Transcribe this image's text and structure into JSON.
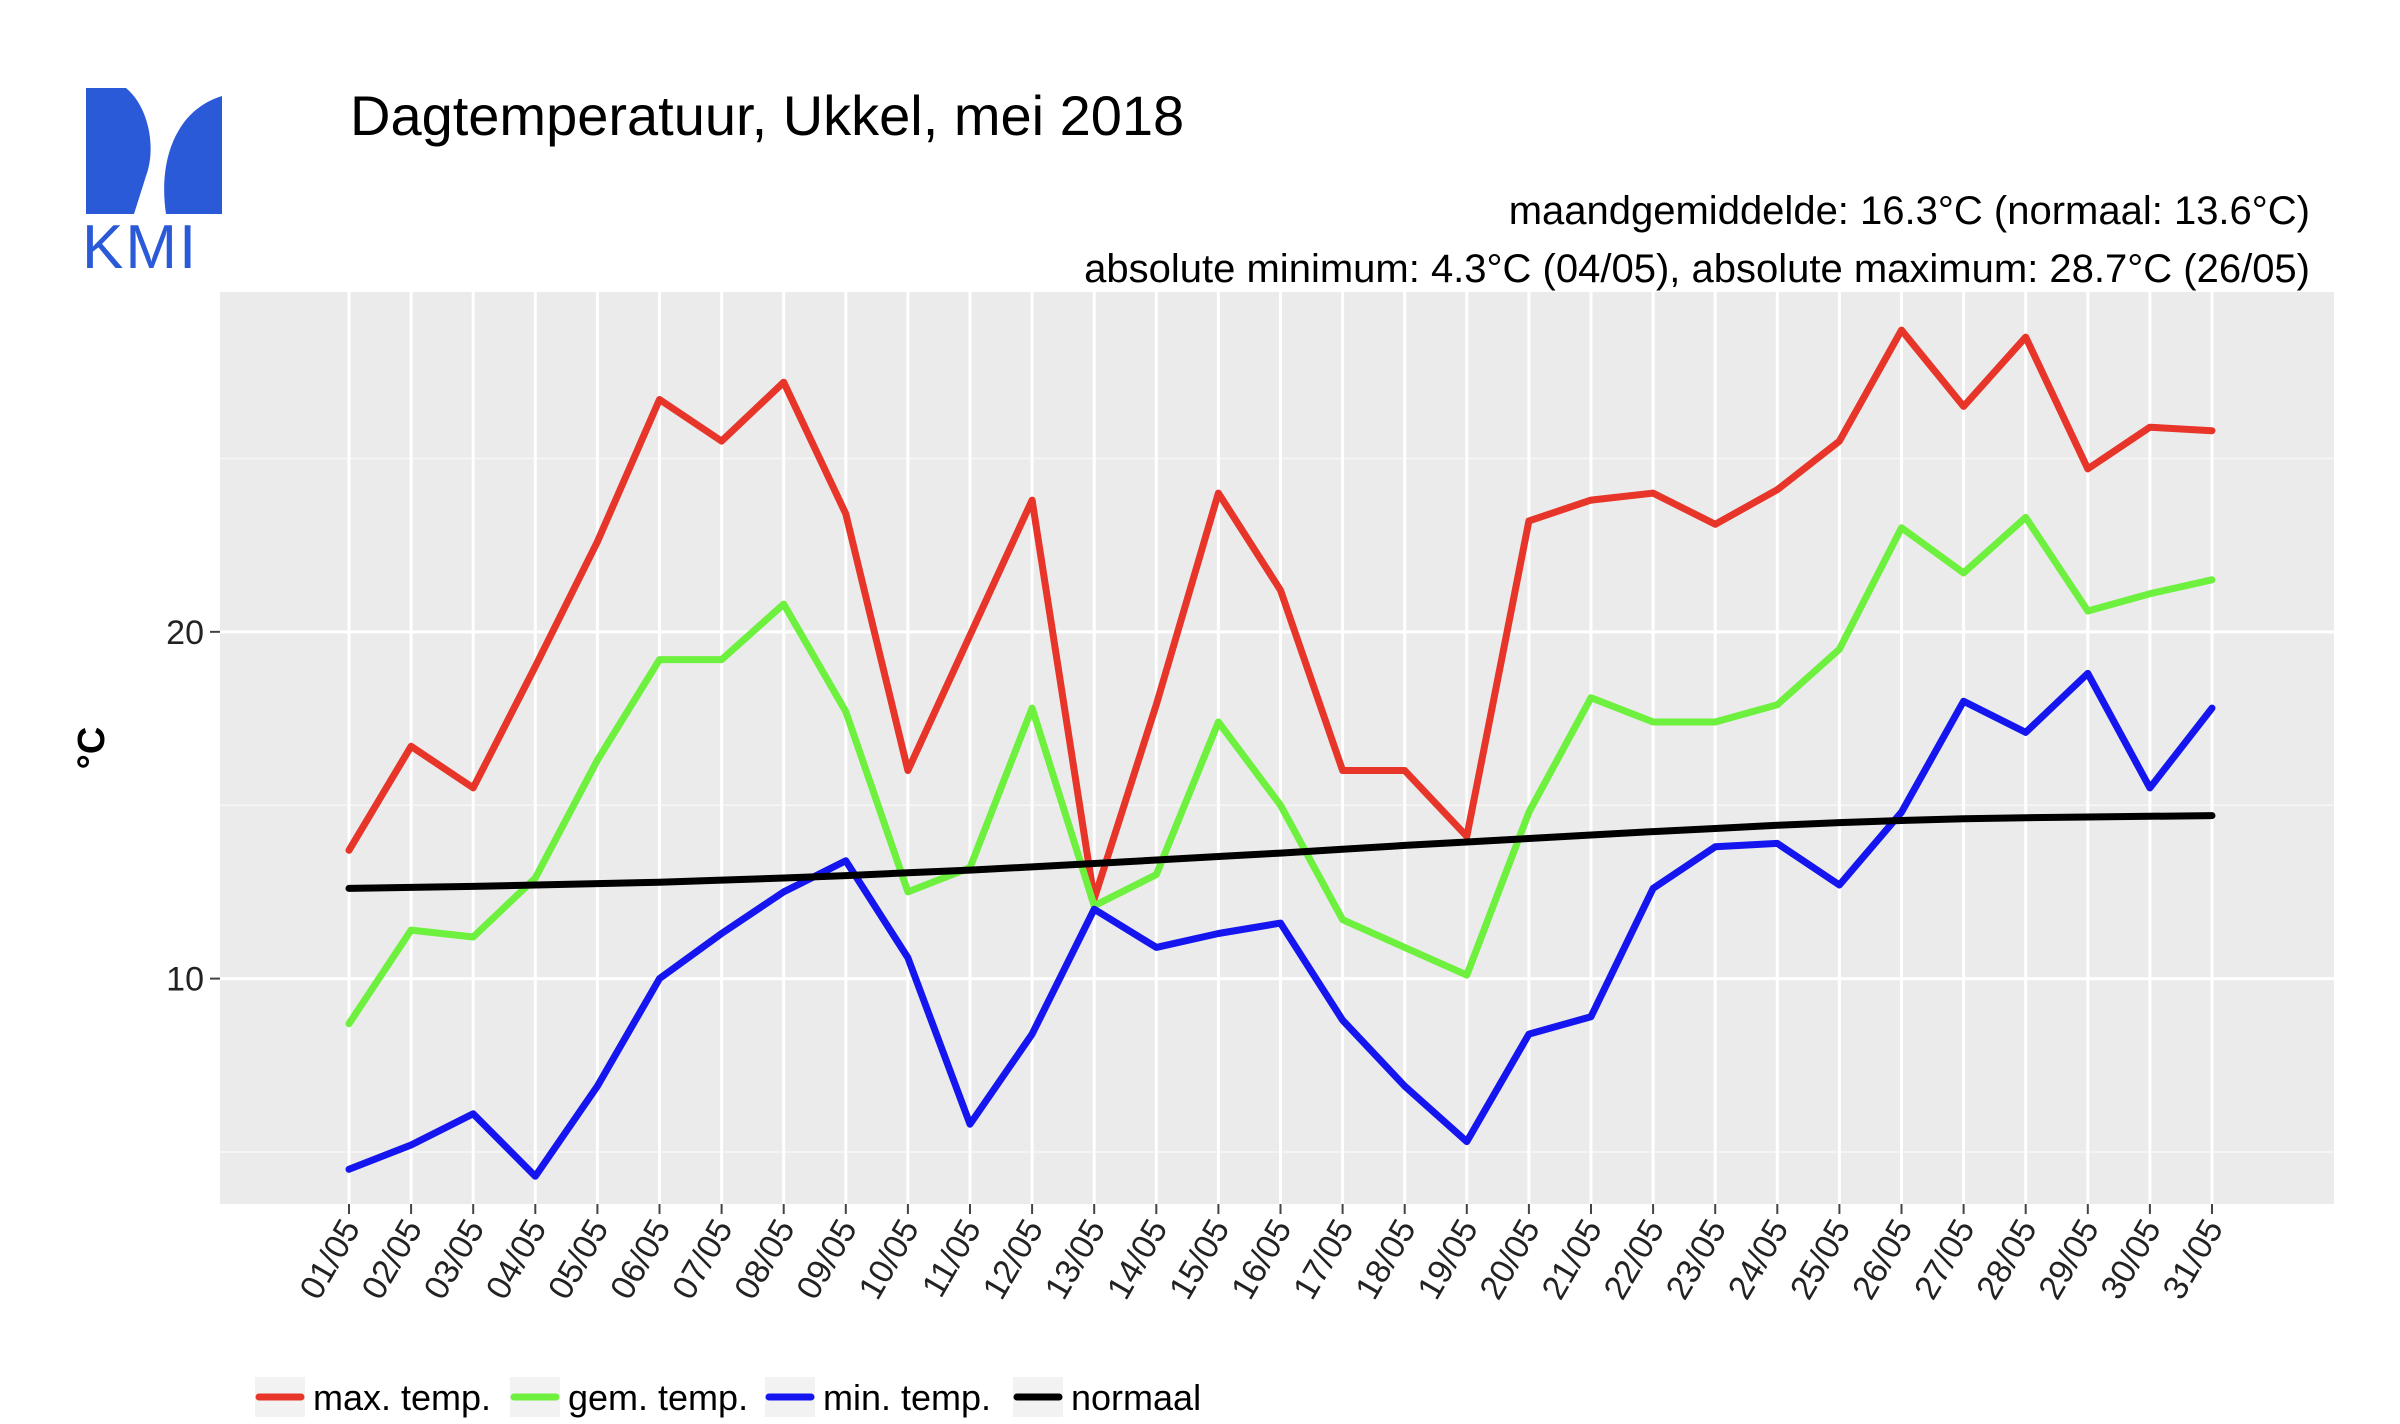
{
  "logo": {
    "text": "KMI",
    "color": "#2a5ad8"
  },
  "chart_data": {
    "type": "line",
    "title": "Dagtemperatuur, Ukkel, mei 2018",
    "subtitle_lines": [
      "maandgemiddelde: 16.3°C (normaal: 13.6°C)",
      "absolute minimum: 4.3°C (04/05), absolute maximum: 28.7°C (26/05)"
    ],
    "ylabel": "°C",
    "xlabel": "",
    "ylim": [
      3.5,
      29.8
    ],
    "yticks": [
      10,
      20
    ],
    "grid": true,
    "legend_position": "bottom",
    "categories": [
      "01/05",
      "02/05",
      "03/05",
      "04/05",
      "05/05",
      "06/05",
      "07/05",
      "08/05",
      "09/05",
      "10/05",
      "11/05",
      "12/05",
      "13/05",
      "14/05",
      "15/05",
      "16/05",
      "17/05",
      "18/05",
      "19/05",
      "20/05",
      "21/05",
      "22/05",
      "23/05",
      "24/05",
      "25/05",
      "26/05",
      "27/05",
      "28/05",
      "29/05",
      "30/05",
      "31/05"
    ],
    "series": [
      {
        "name": "max. temp.",
        "color": "#e8352a",
        "values": [
          13.7,
          16.7,
          15.5,
          19.0,
          22.6,
          26.7,
          25.5,
          27.2,
          23.4,
          16.0,
          19.9,
          23.8,
          12.3,
          17.9,
          24.0,
          21.2,
          16.0,
          16.0,
          14.1,
          23.2,
          23.8,
          24.0,
          23.1,
          24.1,
          25.5,
          28.7,
          26.5,
          28.5,
          24.7,
          25.9,
          25.8
        ]
      },
      {
        "name": "gem. temp.",
        "color": "#6ef03e",
        "values": [
          8.7,
          11.4,
          11.2,
          12.9,
          16.3,
          19.2,
          19.2,
          20.8,
          17.7,
          12.5,
          13.2,
          17.8,
          12.1,
          13.0,
          17.4,
          15.0,
          11.7,
          10.9,
          10.1,
          14.8,
          18.1,
          17.4,
          17.4,
          17.9,
          19.5,
          23.0,
          21.7,
          23.3,
          20.6,
          21.1,
          21.5
        ]
      },
      {
        "name": "min. temp.",
        "color": "#1515f0",
        "values": [
          4.5,
          5.2,
          6.1,
          4.3,
          6.9,
          10.0,
          11.3,
          12.5,
          13.4,
          10.6,
          5.8,
          8.4,
          12.0,
          10.9,
          11.3,
          11.6,
          8.8,
          6.9,
          5.3,
          8.4,
          8.9,
          12.6,
          13.8,
          13.9,
          12.7,
          14.8,
          18.0,
          17.1,
          18.8,
          15.5,
          17.8
        ]
      },
      {
        "name": "normaal",
        "color": "#000000",
        "values": [
          12.6,
          12.63,
          12.66,
          12.7,
          12.74,
          12.78,
          12.84,
          12.9,
          12.97,
          13.05,
          13.13,
          13.22,
          13.32,
          13.42,
          13.52,
          13.62,
          13.73,
          13.84,
          13.94,
          14.04,
          14.14,
          14.24,
          14.33,
          14.42,
          14.5,
          14.56,
          14.61,
          14.64,
          14.66,
          14.68,
          14.7
        ]
      }
    ]
  }
}
